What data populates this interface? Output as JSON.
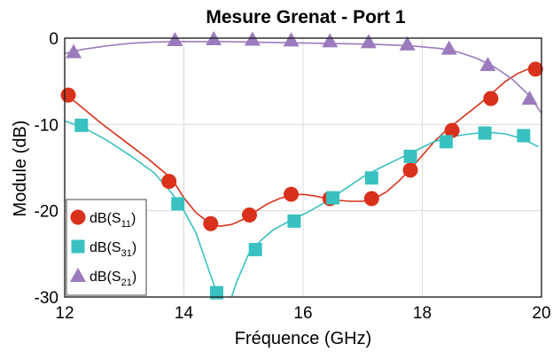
{
  "chart_data": {
    "type": "line",
    "title": "Mesure Grenat - Port 1",
    "xlabel": "Fréquence (GHz)",
    "ylabel": "Module (dB)",
    "xlim": [
      12,
      20
    ],
    "ylim": [
      -30,
      0
    ],
    "xticks": [
      "12",
      "14",
      "16",
      "18",
      "20"
    ],
    "yticks": [
      "0",
      "-10",
      "-20",
      "-30"
    ],
    "grid": true,
    "legend_position": "bottom-left",
    "series": [
      {
        "name": "dB(S11)",
        "legend_base": "dB(S",
        "legend_sub": "11",
        "legend_close": ")",
        "color": "#d9311b",
        "marker": "circle",
        "marker_color": "#d9311b",
        "x": [
          12.0,
          12.2,
          12.6,
          13.0,
          13.4,
          13.8,
          14.0,
          14.2,
          14.4,
          14.6,
          14.8,
          15.0,
          15.2,
          15.4,
          15.6,
          15.8,
          16.0,
          16.2,
          16.4,
          16.6,
          16.8,
          17.0,
          17.2,
          17.4,
          17.6,
          17.8,
          18.0,
          18.2,
          18.4,
          18.6,
          18.8,
          19.0,
          19.2,
          19.4,
          19.6,
          19.8,
          19.95
        ],
        "y": [
          -6.5,
          -7.5,
          -9.8,
          -11.9,
          -14.0,
          -16.3,
          -18.5,
          -20.2,
          -21.3,
          -21.8,
          -21.6,
          -21.0,
          -20.1,
          -19.2,
          -18.6,
          -18.2,
          -18.1,
          -18.3,
          -18.6,
          -18.8,
          -18.9,
          -18.9,
          -18.6,
          -17.8,
          -16.6,
          -15.2,
          -13.6,
          -12.0,
          -10.7,
          -9.6,
          -8.5,
          -7.4,
          -6.2,
          -5.0,
          -4.1,
          -3.5,
          -3.3
        ],
        "marker_x": [
          12.06,
          13.75,
          14.45,
          15.1,
          15.8,
          16.45,
          17.15,
          17.8,
          18.5,
          19.15,
          19.9
        ],
        "marker_y": [
          -6.6,
          -16.6,
          -21.5,
          -20.5,
          -18.1,
          -18.6,
          -18.6,
          -15.3,
          -10.7,
          -7.0,
          -3.6
        ]
      },
      {
        "name": "dB(S31)",
        "legend_base": "dB(S",
        "legend_sub": "31",
        "legend_close": ")",
        "color": "#38c1c0",
        "marker": "square",
        "marker_color": "#38c1c0",
        "x": [
          12.0,
          12.3,
          12.7,
          13.1,
          13.5,
          13.8,
          14.0,
          14.2,
          14.4,
          14.6,
          14.75,
          14.9,
          15.1,
          15.3,
          15.5,
          15.8,
          16.1,
          16.4,
          16.7,
          17.0,
          17.3,
          17.6,
          17.9,
          18.2,
          18.5,
          18.8,
          19.1,
          19.4,
          19.7,
          19.95
        ],
        "y": [
          -9.6,
          -10.3,
          -11.8,
          -13.6,
          -15.6,
          -18.0,
          -20.0,
          -22.5,
          -26.5,
          -30.5,
          -31.0,
          -28.0,
          -24.8,
          -23.4,
          -22.2,
          -21.1,
          -20.1,
          -18.9,
          -17.5,
          -16.1,
          -15.0,
          -14.0,
          -13.0,
          -12.0,
          -11.4,
          -11.1,
          -10.9,
          -11.1,
          -11.7,
          -12.6
        ],
        "marker_x": [
          12.28,
          13.9,
          14.55,
          15.2,
          15.85,
          16.5,
          17.15,
          17.8,
          18.4,
          19.05,
          19.7
        ],
        "marker_y": [
          -10.1,
          -19.2,
          -29.5,
          -24.5,
          -21.2,
          -18.5,
          -16.2,
          -13.7,
          -12.0,
          -11.0,
          -11.3
        ]
      },
      {
        "name": "dB(S21)",
        "legend_base": "dB(S",
        "legend_sub": "21",
        "legend_close": ")",
        "color": "#9b7bbd",
        "marker": "triangle",
        "marker_color": "#9b7bbd",
        "x": [
          12.0,
          12.3,
          12.7,
          13.1,
          13.5,
          13.9,
          14.3,
          14.7,
          15.1,
          15.5,
          15.9,
          16.3,
          16.7,
          17.1,
          17.5,
          17.9,
          18.3,
          18.6,
          18.9,
          19.2,
          19.5,
          19.8,
          20.0
        ],
        "y": [
          -1.8,
          -1.3,
          -0.9,
          -0.6,
          -0.45,
          -0.4,
          -0.4,
          -0.4,
          -0.45,
          -0.5,
          -0.55,
          -0.6,
          -0.65,
          -0.7,
          -0.8,
          -0.95,
          -1.2,
          -1.6,
          -2.3,
          -3.3,
          -4.7,
          -6.7,
          -8.7
        ],
        "marker_x": [
          12.15,
          13.85,
          14.5,
          15.15,
          15.8,
          16.45,
          17.1,
          17.75,
          18.45,
          19.1,
          19.8
        ],
        "marker_y": [
          -1.6,
          -0.2,
          -0.1,
          -0.15,
          -0.25,
          -0.35,
          -0.45,
          -0.7,
          -1.2,
          -3.1,
          -7.0
        ]
      }
    ]
  }
}
